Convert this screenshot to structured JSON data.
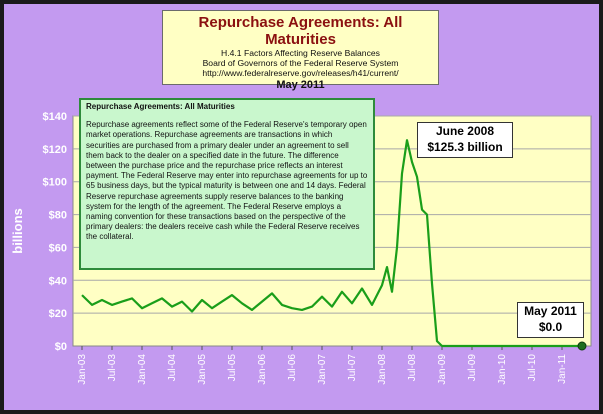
{
  "header": {
    "title": "Repurchase Agreements: All Maturities",
    "line1": "H.4.1 Factors Affecting Reserve Balances",
    "line2": "Board of Governors of the Federal Reserve System",
    "line3": "http://www.federalreserve.gov/releases/h41/current/",
    "date": "May 2011"
  },
  "note": {
    "heading": "Repurchase Agreements: All Maturities",
    "body": "Repurchase agreements reflect some of the Federal Reserve's temporary open market operations. Repurchase agreements are transactions in which securities are purchased from a primary dealer under an agreement to sell them back to the dealer on a specified date in the future. The difference between the purchase price and the repurchase price reflects an interest payment. The Federal Reserve may enter into repurchase agreements for up to 65 business days, but the typical maturity is between one and 14 days. Federal Reserve repurchase agreements supply reserve balances to the banking system for the length of the agreement. The Federal Reserve employs a naming convention for these transactions based on the perspective of the primary dealers: the dealers receive cash while the Federal Reserve receives the collateral."
  },
  "annotations": {
    "peak_line1": "June 2008",
    "peak_line2": "$125.3 billion",
    "end_line1": "May 2011",
    "end_line2": "$0.0"
  },
  "colors": {
    "line": "#1a9e1a",
    "plot_bg": "#ffffc4",
    "panel_bg": "#c39af0",
    "title_text": "#8b1010",
    "note_bg": "#c9f7cd"
  },
  "chart_data": {
    "type": "line",
    "ylabel": "billions",
    "ylim": [
      0,
      140
    ],
    "yticks": [
      0,
      20,
      40,
      60,
      80,
      100,
      120,
      140
    ],
    "ytick_labels": [
      "$0",
      "$20",
      "$40",
      "$60",
      "$80",
      "$100",
      "$120",
      "$140"
    ],
    "xlim": [
      "2003-01",
      "2011-05"
    ],
    "xtick_labels": [
      "Jan-03",
      "Jul-03",
      "Jan-04",
      "Jul-04",
      "Jan-05",
      "Jul-05",
      "Jan-06",
      "Jul-06",
      "Jan-07",
      "Jul-07",
      "Jan-08",
      "Jul-08",
      "Jan-09",
      "Jul-09",
      "Jan-10",
      "Jul-10",
      "Jan-11"
    ],
    "grid": true,
    "series": [
      {
        "x": [
          "2003-01",
          "2003-03",
          "2003-05",
          "2003-07",
          "2003-09",
          "2003-11",
          "2004-01",
          "2004-03",
          "2004-05",
          "2004-07",
          "2004-09",
          "2004-11",
          "2005-01",
          "2005-03",
          "2005-05",
          "2005-07",
          "2005-09",
          "2005-11",
          "2006-01",
          "2006-03",
          "2006-05",
          "2006-07",
          "2006-09",
          "2006-11",
          "2007-01",
          "2007-03",
          "2007-05",
          "2007-07",
          "2007-09",
          "2007-11",
          "2008-01",
          "2008-02",
          "2008-03",
          "2008-04",
          "2008-05",
          "2008-06",
          "2008-07",
          "2008-08",
          "2008-09",
          "2008-10",
          "2008-11",
          "2008-12",
          "2009-01",
          "2009-02",
          "2009-04",
          "2009-07",
          "2010-01",
          "2010-07",
          "2011-01",
          "2011-05"
        ],
        "values": [
          31,
          25,
          28,
          25,
          27,
          29,
          23,
          26,
          29,
          24,
          27,
          21,
          28,
          23,
          27,
          31,
          26,
          22,
          27,
          32,
          25,
          23,
          22,
          24,
          30,
          24,
          33,
          26,
          35,
          25,
          37,
          48,
          33,
          60,
          105,
          125.3,
          112,
          103,
          83,
          80,
          38,
          3,
          0,
          0,
          0,
          0,
          0,
          0,
          0,
          0
        ]
      }
    ]
  }
}
